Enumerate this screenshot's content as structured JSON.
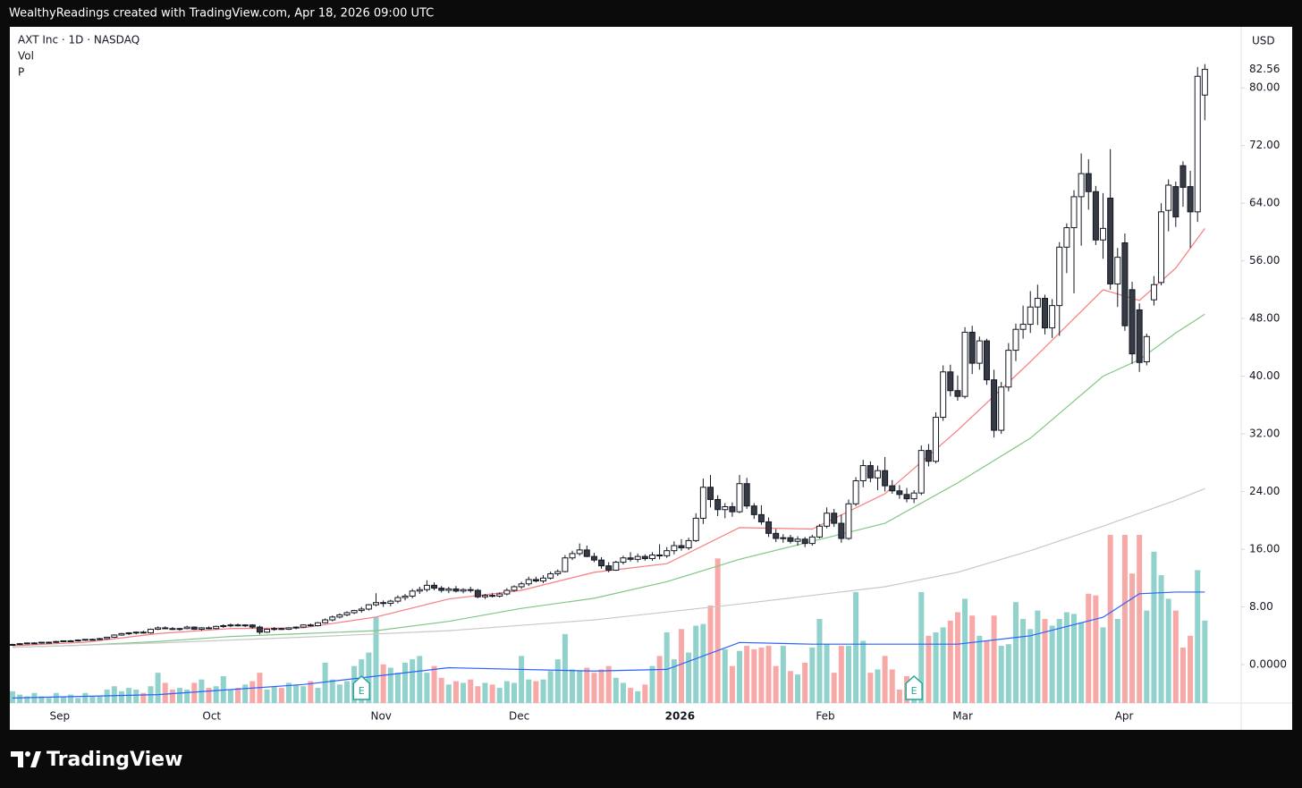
{
  "chart_data": {
    "type": "candlestick",
    "header": "WealthyReadings created with TradingView.com, Apr 18, 2026 09:00 UTC",
    "title": "AXT Inc · 1D · NASDAQ",
    "legend_items": [
      "Vol",
      "P"
    ],
    "currency": "USD",
    "brand": "TradingView",
    "up_color": "#ffffff",
    "down_color": "#363a45",
    "outline_color": "#131722",
    "vol_up_color": "#92d2cc",
    "vol_down_color": "#f7a9a7",
    "xlim": [
      -0.37,
      169
    ],
    "ylim": [
      -5.33,
      88.46
    ],
    "vlim": [
      0,
      100
    ],
    "yticks": [
      {
        "value": 80,
        "label": "80.00"
      },
      {
        "value": 72,
        "label": "72.00"
      },
      {
        "value": 64,
        "label": "64.00"
      },
      {
        "value": 56,
        "label": "56.00"
      },
      {
        "value": 48,
        "label": "48.00"
      },
      {
        "value": 40,
        "label": "40.00"
      },
      {
        "value": 32,
        "label": "32.00"
      },
      {
        "value": 24,
        "label": "24.00"
      },
      {
        "value": 16,
        "label": "16.00"
      },
      {
        "value": 8,
        "label": "8.00"
      },
      {
        "value": 0,
        "label": "0.0000"
      }
    ],
    "xticks": [
      {
        "value": 6.5,
        "label": "Sep"
      },
      {
        "value": 27.4,
        "label": "Oct"
      },
      {
        "value": 50.7,
        "label": "Nov"
      },
      {
        "value": 69.7,
        "label": "Dec"
      },
      {
        "value": 91.8,
        "label": "2026"
      },
      {
        "value": 111.8,
        "label": "Feb"
      },
      {
        "value": 130.7,
        "label": "Mar"
      },
      {
        "value": 152.9,
        "label": "Apr"
      }
    ],
    "last_price": {
      "value": 82.56,
      "label": "82.56"
    },
    "events": [
      {
        "x": 48,
        "label": "E"
      },
      {
        "x": 124,
        "label": "E"
      }
    ],
    "ohlc": [
      [
        2.8,
        2.9,
        2.7,
        2.8
      ],
      [
        2.8,
        3.0,
        2.8,
        2.9
      ],
      [
        2.9,
        3.0,
        2.8,
        3.0
      ],
      [
        3.0,
        3.1,
        2.9,
        3.0
      ],
      [
        3.0,
        3.1,
        2.9,
        3.1
      ],
      [
        3.1,
        3.2,
        3.0,
        3.1
      ],
      [
        3.1,
        3.3,
        3.0,
        3.2
      ],
      [
        3.2,
        3.3,
        3.1,
        3.3
      ],
      [
        3.3,
        3.4,
        3.2,
        3.3
      ],
      [
        3.3,
        3.5,
        3.2,
        3.4
      ],
      [
        3.4,
        3.5,
        3.3,
        3.5
      ],
      [
        3.5,
        3.6,
        3.4,
        3.5
      ],
      [
        3.5,
        3.7,
        3.4,
        3.6
      ],
      [
        3.6,
        3.8,
        3.5,
        3.8
      ],
      [
        3.8,
        4.2,
        3.7,
        4.1
      ],
      [
        4.1,
        4.4,
        4.0,
        4.3
      ],
      [
        4.3,
        4.5,
        4.1,
        4.4
      ],
      [
        4.4,
        4.6,
        4.2,
        4.5
      ],
      [
        4.5,
        4.7,
        4.3,
        4.4
      ],
      [
        4.4,
        5.0,
        4.3,
        4.9
      ],
      [
        4.9,
        5.3,
        4.8,
        5.1
      ],
      [
        5.1,
        5.3,
        4.9,
        5.0
      ],
      [
        5.0,
        5.2,
        4.8,
        4.9
      ],
      [
        4.9,
        5.1,
        4.7,
        5.0
      ],
      [
        5.0,
        5.4,
        4.9,
        5.2
      ],
      [
        5.2,
        5.3,
        4.8,
        4.9
      ],
      [
        4.9,
        5.2,
        4.7,
        5.1
      ],
      [
        5.1,
        5.3,
        4.9,
        5.0
      ],
      [
        5.0,
        5.4,
        4.9,
        5.3
      ],
      [
        5.3,
        5.6,
        5.1,
        5.4
      ],
      [
        5.4,
        5.7,
        5.2,
        5.5
      ],
      [
        5.5,
        5.7,
        5.3,
        5.4
      ],
      [
        5.4,
        5.6,
        5.2,
        5.5
      ],
      [
        5.5,
        5.6,
        5.0,
        5.2
      ],
      [
        5.2,
        5.4,
        4.2,
        4.5
      ],
      [
        4.5,
        5.0,
        4.4,
        4.9
      ],
      [
        4.9,
        5.2,
        4.7,
        5.0
      ],
      [
        5.0,
        5.1,
        4.8,
        4.9
      ],
      [
        4.9,
        5.2,
        4.8,
        5.1
      ],
      [
        5.1,
        5.3,
        4.9,
        5.2
      ],
      [
        5.2,
        5.6,
        5.1,
        5.5
      ],
      [
        5.5,
        5.7,
        5.3,
        5.4
      ],
      [
        5.4,
        5.9,
        5.3,
        5.8
      ],
      [
        5.8,
        6.4,
        5.7,
        6.2
      ],
      [
        6.2,
        6.8,
        6.0,
        6.6
      ],
      [
        6.6,
        7.1,
        6.4,
        6.9
      ],
      [
        6.9,
        7.4,
        6.7,
        7.2
      ],
      [
        7.2,
        7.6,
        7.0,
        7.5
      ],
      [
        7.5,
        8.0,
        7.2,
        7.7
      ],
      [
        7.7,
        8.4,
        7.5,
        8.3
      ],
      [
        8.3,
        9.9,
        8.1,
        8.6
      ],
      [
        8.6,
        8.9,
        8.0,
        8.5
      ],
      [
        8.5,
        9.0,
        8.1,
        8.8
      ],
      [
        8.8,
        9.6,
        8.5,
        9.3
      ],
      [
        9.3,
        9.8,
        8.9,
        9.5
      ],
      [
        9.5,
        10.5,
        9.2,
        10.2
      ],
      [
        10.2,
        10.8,
        9.8,
        10.4
      ],
      [
        10.4,
        11.7,
        10.1,
        11.0
      ],
      [
        11.0,
        11.4,
        10.3,
        10.6
      ],
      [
        10.6,
        10.9,
        10.0,
        10.3
      ],
      [
        10.3,
        10.8,
        9.9,
        10.5
      ],
      [
        10.5,
        10.9,
        10.0,
        10.2
      ],
      [
        10.2,
        10.6,
        9.9,
        10.4
      ],
      [
        10.4,
        10.8,
        10.0,
        10.3
      ],
      [
        10.3,
        10.5,
        9.2,
        9.4
      ],
      [
        9.4,
        9.8,
        9.1,
        9.6
      ],
      [
        9.6,
        9.9,
        9.3,
        9.5
      ],
      [
        9.5,
        10.0,
        9.3,
        9.8
      ],
      [
        9.8,
        10.6,
        9.6,
        10.3
      ],
      [
        10.3,
        11.0,
        10.1,
        10.8
      ],
      [
        10.8,
        11.5,
        10.5,
        11.2
      ],
      [
        11.2,
        12.2,
        10.9,
        11.8
      ],
      [
        11.8,
        12.2,
        11.4,
        11.6
      ],
      [
        11.6,
        12.4,
        11.3,
        12.0
      ],
      [
        12.0,
        12.9,
        11.8,
        12.6
      ],
      [
        12.6,
        13.2,
        12.3,
        12.9
      ],
      [
        12.9,
        15.2,
        12.8,
        14.8
      ],
      [
        14.8,
        15.8,
        14.5,
        15.4
      ],
      [
        15.4,
        16.8,
        15.1,
        15.9
      ],
      [
        15.9,
        16.5,
        14.9,
        15.0
      ],
      [
        15.0,
        15.5,
        14.2,
        14.5
      ],
      [
        14.5,
        14.9,
        13.3,
        13.7
      ],
      [
        13.7,
        14.2,
        12.8,
        13.1
      ],
      [
        13.1,
        14.4,
        13.0,
        14.2
      ],
      [
        14.2,
        15.1,
        13.9,
        14.8
      ],
      [
        14.8,
        15.6,
        14.3,
        14.6
      ],
      [
        14.6,
        15.4,
        14.2,
        15.0
      ],
      [
        15.0,
        15.3,
        14.4,
        14.7
      ],
      [
        14.7,
        15.6,
        14.4,
        15.2
      ],
      [
        15.2,
        16.7,
        14.6,
        15.1
      ],
      [
        15.1,
        16.3,
        14.8,
        15.8
      ],
      [
        15.8,
        17.1,
        15.3,
        16.5
      ],
      [
        16.5,
        17.4,
        15.8,
        16.2
      ],
      [
        16.2,
        17.6,
        15.9,
        17.2
      ],
      [
        17.2,
        21.0,
        17.0,
        20.3
      ],
      [
        20.3,
        25.8,
        19.5,
        24.6
      ],
      [
        24.6,
        26.3,
        21.8,
        22.9
      ],
      [
        22.9,
        23.5,
        20.6,
        21.5
      ],
      [
        21.5,
        22.4,
        20.3,
        21.9
      ],
      [
        21.9,
        22.5,
        20.5,
        21.2
      ],
      [
        21.2,
        26.3,
        21.0,
        25.1
      ],
      [
        25.1,
        25.9,
        21.6,
        22.0
      ],
      [
        22.0,
        22.4,
        20.2,
        20.8
      ],
      [
        20.8,
        22.1,
        19.4,
        19.8
      ],
      [
        19.8,
        20.4,
        17.7,
        18.2
      ],
      [
        18.2,
        18.8,
        17.0,
        17.5
      ],
      [
        17.5,
        18.1,
        16.9,
        17.6
      ],
      [
        17.6,
        18.0,
        16.8,
        17.1
      ],
      [
        17.1,
        17.8,
        16.5,
        17.4
      ],
      [
        17.4,
        17.7,
        16.3,
        16.8
      ],
      [
        16.8,
        18.0,
        16.5,
        17.7
      ],
      [
        17.7,
        19.5,
        17.5,
        19.2
      ],
      [
        19.2,
        21.8,
        18.9,
        21.0
      ],
      [
        21.0,
        21.6,
        19.1,
        19.6
      ],
      [
        19.6,
        20.8,
        16.9,
        17.5
      ],
      [
        17.5,
        22.9,
        17.3,
        22.3
      ],
      [
        22.3,
        26.0,
        22.0,
        25.5
      ],
      [
        25.5,
        28.4,
        24.6,
        27.6
      ],
      [
        27.6,
        28.2,
        25.3,
        25.9
      ],
      [
        25.9,
        27.6,
        24.2,
        26.9
      ],
      [
        26.9,
        28.8,
        24.0,
        24.8
      ],
      [
        24.8,
        25.6,
        23.7,
        24.1
      ],
      [
        24.1,
        24.9,
        23.0,
        23.6
      ],
      [
        23.6,
        24.5,
        22.5,
        23.0
      ],
      [
        23.0,
        24.2,
        22.4,
        23.8
      ],
      [
        23.8,
        30.4,
        23.5,
        29.7
      ],
      [
        29.7,
        30.6,
        27.5,
        28.2
      ],
      [
        28.2,
        35.0,
        27.9,
        34.3
      ],
      [
        34.3,
        41.5,
        33.8,
        40.6
      ],
      [
        40.6,
        41.6,
        37.2,
        38.0
      ],
      [
        38.0,
        40.1,
        36.6,
        37.2
      ],
      [
        37.2,
        46.8,
        36.9,
        46.1
      ],
      [
        46.1,
        47.0,
        40.3,
        41.8
      ],
      [
        41.8,
        45.5,
        40.9,
        44.9
      ],
      [
        44.9,
        45.2,
        38.8,
        39.5
      ],
      [
        39.5,
        40.9,
        31.5,
        32.5
      ],
      [
        32.5,
        39.2,
        32.0,
        38.5
      ],
      [
        38.5,
        44.6,
        37.9,
        43.6
      ],
      [
        43.6,
        47.3,
        42.1,
        46.5
      ],
      [
        46.5,
        49.8,
        45.2,
        47.2
      ],
      [
        47.2,
        51.8,
        46.0,
        49.6
      ],
      [
        49.6,
        52.7,
        47.1,
        50.8
      ],
      [
        50.8,
        51.3,
        45.8,
        46.7
      ],
      [
        46.7,
        50.7,
        45.3,
        49.8
      ],
      [
        49.8,
        58.6,
        45.6,
        57.9
      ],
      [
        57.9,
        61.2,
        54.3,
        60.6
      ],
      [
        60.6,
        65.8,
        51.5,
        64.9
      ],
      [
        64.9,
        70.9,
        58.1,
        68.1
      ],
      [
        68.1,
        70.1,
        63.1,
        65.6
      ],
      [
        65.6,
        66.4,
        58.2,
        58.9
      ],
      [
        58.9,
        65.4,
        56.3,
        60.5
      ],
      [
        64.7,
        71.5,
        52.0,
        52.8
      ],
      [
        52.8,
        57.8,
        49.6,
        56.5
      ],
      [
        58.5,
        59.8,
        46.3,
        47.0
      ],
      [
        52.0,
        53.1,
        41.7,
        43.1
      ],
      [
        49.2,
        50.1,
        40.6,
        41.9
      ],
      [
        42.0,
        45.9,
        41.5,
        45.5
      ],
      [
        50.6,
        53.9,
        49.8,
        52.7
      ],
      [
        53.0,
        64.0,
        52.6,
        62.8
      ],
      [
        63.0,
        67.3,
        60.1,
        66.5
      ],
      [
        66.3,
        67.0,
        60.7,
        62.1
      ],
      [
        69.2,
        69.8,
        63.5,
        66.2
      ],
      [
        66.3,
        68.5,
        57.8,
        62.8
      ],
      [
        62.8,
        82.9,
        61.4,
        81.6
      ],
      [
        79.0,
        83.3,
        75.5,
        82.56
      ]
    ],
    "volume": [
      7,
      5,
      4,
      6,
      4,
      3,
      6,
      4,
      5,
      3,
      6,
      4,
      4,
      8,
      10,
      7,
      9,
      8,
      6,
      10,
      18,
      12,
      8,
      9,
      8,
      12,
      14,
      9,
      10,
      16,
      8,
      9,
      11,
      13,
      18,
      8,
      10,
      9,
      12,
      11,
      10,
      13,
      9,
      24,
      14,
      11,
      13,
      22,
      26,
      30,
      51,
      23,
      21,
      18,
      24,
      26,
      28,
      18,
      22,
      15,
      11,
      13,
      12,
      14,
      10,
      12,
      11,
      9,
      13,
      12,
      28,
      14,
      13,
      14,
      19,
      26,
      41,
      20,
      19,
      21,
      18,
      20,
      22,
      15,
      12,
      9,
      7,
      11,
      22,
      28,
      42,
      26,
      44,
      30,
      46,
      47,
      58,
      86,
      32,
      22,
      31,
      34,
      32,
      33,
      34,
      22,
      34,
      19,
      17,
      24,
      33,
      50,
      35,
      18,
      34,
      34,
      66,
      37,
      18,
      20,
      28,
      20,
      8,
      16,
      14,
      66,
      40,
      42,
      45,
      49,
      54,
      62,
      52,
      40,
      37,
      52,
      34,
      35,
      60,
      50,
      44,
      55,
      50,
      46,
      50,
      54,
      53,
      48,
      65,
      64,
      45,
      100,
      50,
      100,
      77,
      100,
      55,
      90,
      76,
      62,
      55,
      33,
      40,
      79,
      49
    ],
    "moving_averages": [
      {
        "color": "#f77c80",
        "x": [
          0,
          10,
          20,
          30,
          40,
          50,
          60,
          70,
          80,
          90,
          100,
          110,
          120,
          130,
          140,
          150,
          155,
          160,
          164
        ],
        "values": [
          2.6,
          3.1,
          4.3,
          5.0,
          5.1,
          6.6,
          9.1,
          10.3,
          12.8,
          14.0,
          19.0,
          18.8,
          23.7,
          32.5,
          42.0,
          52.0,
          50.5,
          55.0,
          60.5
        ]
      },
      {
        "color": "#81c784",
        "x": [
          0,
          10,
          20,
          30,
          40,
          50,
          60,
          70,
          80,
          90,
          100,
          110,
          120,
          130,
          140,
          150,
          155,
          160,
          164
        ],
        "values": [
          2.4,
          2.7,
          3.2,
          3.9,
          4.3,
          4.7,
          6.0,
          7.8,
          9.2,
          11.5,
          14.6,
          17.1,
          19.6,
          25.2,
          31.4,
          40.0,
          42.3,
          46.0,
          48.6
        ]
      },
      {
        "color": "#c8c8c8",
        "x": [
          0,
          20,
          40,
          60,
          80,
          100,
          120,
          130,
          140,
          150,
          160,
          164
        ],
        "values": [
          2.4,
          3.0,
          3.8,
          4.7,
          6.2,
          8.4,
          10.8,
          12.8,
          15.8,
          19.2,
          22.8,
          24.4
        ]
      }
    ],
    "volume_ma": {
      "color": "#2962ff",
      "x": [
        0,
        20,
        40,
        60,
        80,
        90,
        100,
        110,
        120,
        130,
        140,
        150,
        155,
        160,
        164
      ],
      "values": [
        3,
        5,
        11,
        21,
        19,
        20,
        36,
        35,
        35,
        35,
        40,
        51,
        65,
        66,
        66
      ]
    }
  }
}
